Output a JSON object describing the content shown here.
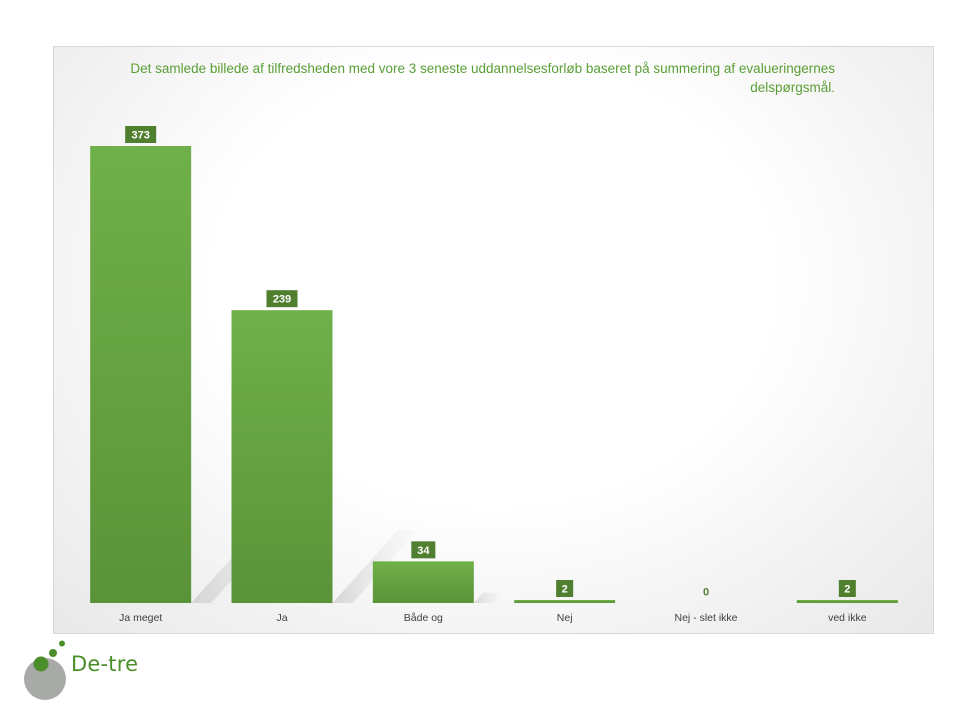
{
  "chart_data": {
    "type": "bar",
    "title": "Det samlede billede af tilfredsheden med vore 3 seneste uddannelsesforløb baseret på summering af evalueringernes delspørgsmål.",
    "categories": [
      "Ja meget",
      "Ja",
      "Både og",
      "Nej",
      "Nej - slet ikke",
      "ved ikke"
    ],
    "values": [
      373,
      239,
      34,
      2,
      0,
      2
    ],
    "xlabel": "",
    "ylabel": "",
    "ylim": [
      0,
      373
    ],
    "grid": false,
    "legend": "none",
    "bar_color": "#6aaa46",
    "label_bg": "#4f7f2f"
  },
  "logo": {
    "text": "De-tre",
    "color": "#4c8f2a"
  }
}
